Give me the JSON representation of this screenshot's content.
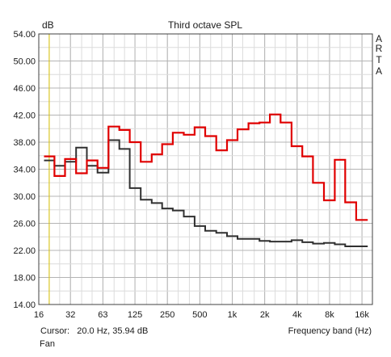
{
  "chart_data": {
    "type": "line",
    "title": "Third octave SPL",
    "ylabel": "dB",
    "xlabel": "Frequency band (Hz)",
    "x_scale": "log",
    "xlim": [
      16,
      20000
    ],
    "ylim": [
      14,
      54
    ],
    "y_ticks": [
      "54.00",
      "50.00",
      "46.00",
      "42.00",
      "38.00",
      "34.00",
      "30.00",
      "26.00",
      "22.00",
      "18.00",
      "14.00"
    ],
    "x_ticks": [
      {
        "value": 16,
        "label": "16"
      },
      {
        "value": 31.5,
        "label": "32"
      },
      {
        "value": 63,
        "label": "63"
      },
      {
        "value": 125,
        "label": "125"
      },
      {
        "value": 250,
        "label": "250"
      },
      {
        "value": 500,
        "label": "500"
      },
      {
        "value": 1000,
        "label": "1k"
      },
      {
        "value": 2000,
        "label": "2k"
      },
      {
        "value": 4000,
        "label": "4k"
      },
      {
        "value": 8000,
        "label": "8k"
      },
      {
        "value": 16000,
        "label": "16k"
      }
    ],
    "bands": [
      20,
      25,
      31.5,
      40,
      50,
      63,
      80,
      100,
      125,
      160,
      200,
      250,
      315,
      400,
      500,
      630,
      800,
      1000,
      1250,
      1600,
      2000,
      2500,
      3150,
      4000,
      5000,
      6300,
      8000,
      10000,
      12500,
      16000
    ],
    "series": [
      {
        "color": "#e00000",
        "values": [
          35.9,
          33.0,
          35.5,
          33.4,
          35.3,
          34.2,
          40.3,
          39.8,
          38.0,
          35.1,
          36.2,
          37.7,
          39.4,
          39.1,
          40.2,
          38.9,
          36.8,
          38.3,
          39.9,
          40.8,
          40.9,
          42.1,
          40.9,
          37.4,
          35.9,
          32.0,
          29.4,
          35.4,
          29.1,
          26.5
        ]
      },
      {
        "color": "#303030",
        "values": [
          35.3,
          34.5,
          35.1,
          37.2,
          34.5,
          33.5,
          38.3,
          37.0,
          31.2,
          29.5,
          29.0,
          28.2,
          27.9,
          27.0,
          25.6,
          24.9,
          24.6,
          24.1,
          23.7,
          23.7,
          23.4,
          23.3,
          23.3,
          23.5,
          23.2,
          23.0,
          23.1,
          22.9,
          22.6,
          22.6
        ]
      }
    ],
    "grid": true,
    "cursor_line_x": 20
  },
  "brand_letters": [
    "A",
    "R",
    "T",
    "A"
  ],
  "status": {
    "cursor_text": "Cursor:   20.0 Hz, 35.94 dB",
    "axis_caption": "Frequency band (Hz)",
    "bottom_label": "Fan"
  },
  "colors": {
    "background": "#ffffff",
    "plot_background": "#ffffff",
    "grid_major": "#b4b4b4",
    "grid_minor": "#dcdcdc",
    "cursor_line": "#d8c000"
  }
}
